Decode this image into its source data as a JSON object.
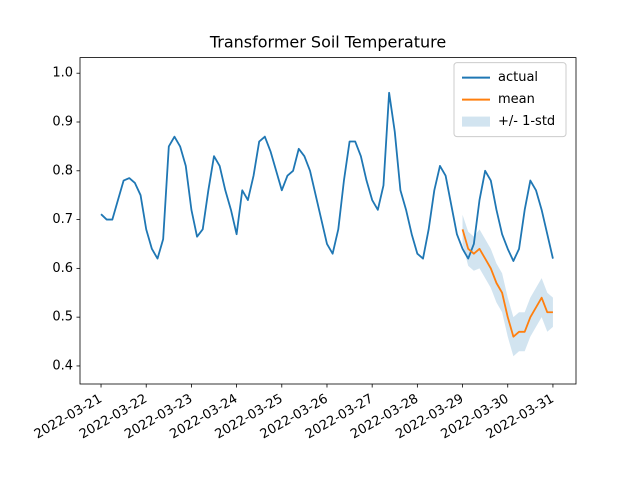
{
  "chart_data": {
    "type": "line",
    "title": "Transformer Soil Temperature",
    "xlim": [
      "2022-03-20T12:50",
      "2022-03-31T12:15"
    ],
    "ylim": [
      0.363,
      1.032
    ],
    "yticks": [
      0.4,
      0.5,
      0.6,
      0.7,
      0.8,
      0.9,
      {
        "value": 1.0,
        "label": "1.0"
      }
    ],
    "xticks": [
      "2022-03-21",
      "2022-03-22",
      "2022-03-23",
      "2022-03-24",
      "2022-03-25",
      "2022-03-26",
      "2022-03-27",
      "2022-03-28",
      "2022-03-29",
      "2022-03-30",
      "2022-03-31"
    ],
    "legend": "upper right",
    "series": [
      {
        "name": "actual",
        "color": "#1f77b4",
        "x": [
          "2022-03-21T00:00",
          "2022-03-21T03:00",
          "2022-03-21T06:00",
          "2022-03-21T09:00",
          "2022-03-21T12:00",
          "2022-03-21T15:00",
          "2022-03-21T18:00",
          "2022-03-21T21:00",
          "2022-03-22T00:00",
          "2022-03-22T03:00",
          "2022-03-22T06:00",
          "2022-03-22T09:00",
          "2022-03-22T12:00",
          "2022-03-22T15:00",
          "2022-03-22T18:00",
          "2022-03-22T21:00",
          "2022-03-23T00:00",
          "2022-03-23T03:00",
          "2022-03-23T06:00",
          "2022-03-23T09:00",
          "2022-03-23T12:00",
          "2022-03-23T15:00",
          "2022-03-23T18:00",
          "2022-03-23T21:00",
          "2022-03-24T00:00",
          "2022-03-24T03:00",
          "2022-03-24T06:00",
          "2022-03-24T09:00",
          "2022-03-24T12:00",
          "2022-03-24T15:00",
          "2022-03-24T18:00",
          "2022-03-24T21:00",
          "2022-03-25T00:00",
          "2022-03-25T03:00",
          "2022-03-25T06:00",
          "2022-03-25T09:00",
          "2022-03-25T12:00",
          "2022-03-25T15:00",
          "2022-03-25T18:00",
          "2022-03-25T21:00",
          "2022-03-26T00:00",
          "2022-03-26T03:00",
          "2022-03-26T06:00",
          "2022-03-26T09:00",
          "2022-03-26T12:00",
          "2022-03-26T15:00",
          "2022-03-26T18:00",
          "2022-03-26T21:00",
          "2022-03-27T00:00",
          "2022-03-27T03:00",
          "2022-03-27T06:00",
          "2022-03-27T09:00",
          "2022-03-27T12:00",
          "2022-03-27T15:00",
          "2022-03-27T18:00",
          "2022-03-27T21:00",
          "2022-03-28T00:00",
          "2022-03-28T03:00",
          "2022-03-28T06:00",
          "2022-03-28T09:00",
          "2022-03-28T12:00",
          "2022-03-28T15:00",
          "2022-03-28T18:00",
          "2022-03-28T21:00",
          "2022-03-29T00:00",
          "2022-03-29T03:00",
          "2022-03-29T06:00",
          "2022-03-29T09:00",
          "2022-03-29T12:00",
          "2022-03-29T15:00",
          "2022-03-29T18:00",
          "2022-03-29T21:00",
          "2022-03-30T00:00",
          "2022-03-30T03:00",
          "2022-03-30T06:00",
          "2022-03-30T09:00",
          "2022-03-30T12:00",
          "2022-03-30T15:00",
          "2022-03-30T18:00",
          "2022-03-30T21:00",
          "2022-03-31T00:00"
        ],
        "values": [
          0.711,
          0.7,
          0.7,
          0.74,
          0.78,
          0.785,
          0.775,
          0.75,
          0.68,
          0.64,
          0.62,
          0.66,
          0.85,
          0.87,
          0.85,
          0.81,
          0.72,
          0.665,
          0.68,
          0.76,
          0.83,
          0.81,
          0.76,
          0.72,
          0.67,
          0.76,
          0.74,
          0.79,
          0.86,
          0.87,
          0.84,
          0.8,
          0.76,
          0.79,
          0.8,
          0.845,
          0.83,
          0.8,
          0.75,
          0.7,
          0.65,
          0.63,
          0.68,
          0.78,
          0.86,
          0.86,
          0.83,
          0.78,
          0.74,
          0.72,
          0.77,
          0.96,
          0.88,
          0.76,
          0.72,
          0.67,
          0.63,
          0.62,
          0.68,
          0.76,
          0.81,
          0.79,
          0.73,
          0.67,
          0.64,
          0.62,
          0.65,
          0.74,
          0.8,
          0.78,
          0.72,
          0.67,
          0.64,
          0.615,
          0.64,
          0.72,
          0.78,
          0.76,
          0.72,
          0.67,
          0.62
        ]
      },
      {
        "name": "mean",
        "color": "#ff7f0e",
        "x": [
          "2022-03-29T00:00",
          "2022-03-29T03:00",
          "2022-03-29T06:00",
          "2022-03-29T09:00",
          "2022-03-29T12:00",
          "2022-03-29T15:00",
          "2022-03-29T18:00",
          "2022-03-29T21:00",
          "2022-03-30T00:00",
          "2022-03-30T03:00",
          "2022-03-30T06:00",
          "2022-03-30T09:00",
          "2022-03-30T12:00",
          "2022-03-30T15:00",
          "2022-03-30T18:00",
          "2022-03-30T21:00",
          "2022-03-31T00:00"
        ],
        "values": [
          0.68,
          0.64,
          0.63,
          0.64,
          0.62,
          0.6,
          0.57,
          0.55,
          0.5,
          0.46,
          0.47,
          0.47,
          0.5,
          0.52,
          0.54,
          0.51,
          0.51
        ]
      }
    ],
    "band": {
      "name": "+/- 1-std",
      "color": "#1f77b4",
      "x": [
        "2022-03-29T00:00",
        "2022-03-29T03:00",
        "2022-03-29T06:00",
        "2022-03-29T09:00",
        "2022-03-29T12:00",
        "2022-03-29T15:00",
        "2022-03-29T18:00",
        "2022-03-29T21:00",
        "2022-03-30T00:00",
        "2022-03-30T03:00",
        "2022-03-30T06:00",
        "2022-03-30T09:00",
        "2022-03-30T12:00",
        "2022-03-30T15:00",
        "2022-03-30T18:00",
        "2022-03-30T21:00",
        "2022-03-31T00:00"
      ],
      "lower": [
        0.65,
        0.605,
        0.595,
        0.6,
        0.58,
        0.56,
        0.53,
        0.51,
        0.46,
        0.42,
        0.43,
        0.43,
        0.46,
        0.48,
        0.5,
        0.47,
        0.48
      ],
      "upper": [
        0.71,
        0.675,
        0.665,
        0.68,
        0.66,
        0.64,
        0.61,
        0.59,
        0.54,
        0.5,
        0.51,
        0.51,
        0.54,
        0.56,
        0.58,
        0.55,
        0.54
      ]
    }
  }
}
